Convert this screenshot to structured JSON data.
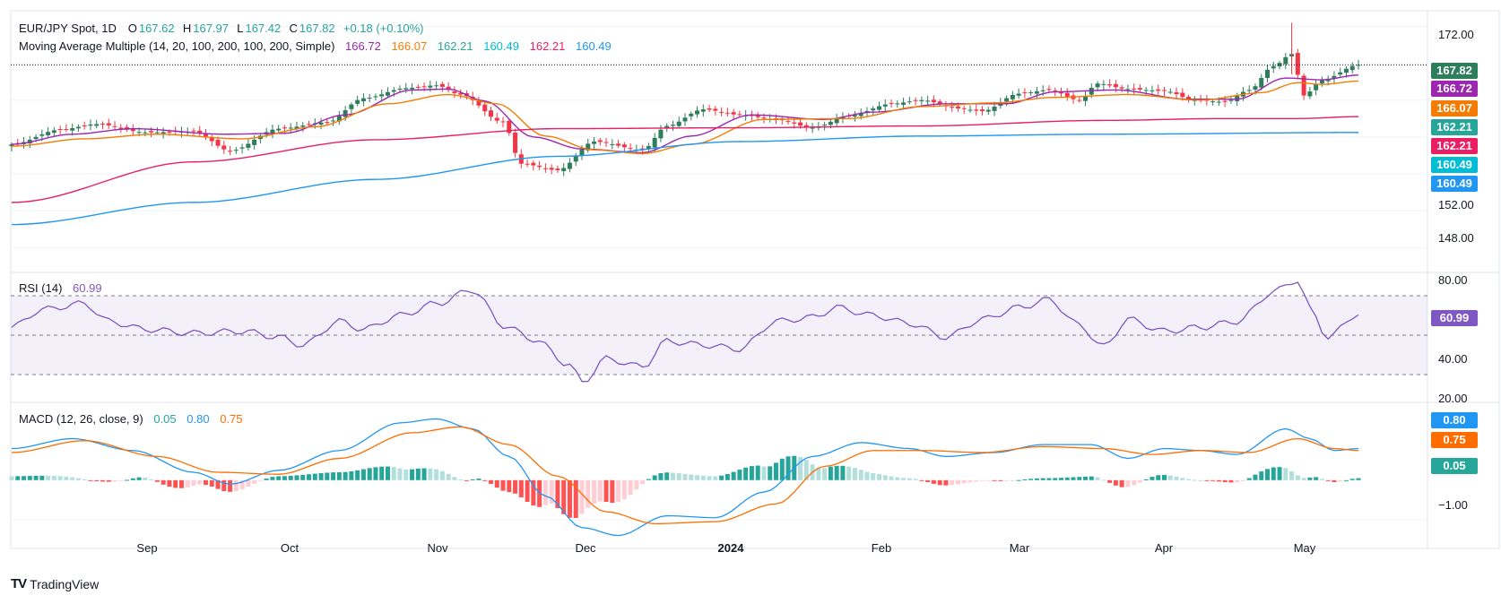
{
  "header": {
    "symbol": "EUR/JPY Spot, 1D",
    "o_label": "O",
    "o": "167.62",
    "h_label": "H",
    "h": "167.97",
    "l_label": "L",
    "l": "167.42",
    "c_label": "C",
    "c": "167.82",
    "change": "+0.18 (+0.10%)"
  },
  "ma_legend": {
    "label": "Moving Average Multiple (14, 20, 100, 200, 100, 200, Simple)",
    "values": [
      "166.72",
      "166.07",
      "162.21",
      "160.49",
      "162.21",
      "160.49"
    ]
  },
  "rsi_legend": {
    "label": "RSI (14)",
    "value": "60.99"
  },
  "macd_legend": {
    "label": "MACD (12, 26, close, 9)",
    "values": [
      "0.05",
      "0.80",
      "0.75"
    ]
  },
  "price_badges": [
    "167.82",
    "166.72",
    "166.07",
    "162.21",
    "162.21",
    "160.49",
    "160.49"
  ],
  "rsi_badge": "60.99",
  "macd_badges": [
    "0.80",
    "0.75",
    "0.05"
  ],
  "price_axis_ticks": [
    "172.00",
    "152.00",
    "148.00"
  ],
  "rsi_axis_ticks": [
    "80.00",
    "40.00",
    "20.00"
  ],
  "macd_axis_ticks": [
    "−1.00"
  ],
  "x_axis_ticks": [
    "Sep",
    "Oct",
    "Nov",
    "Dec",
    "2024",
    "Feb",
    "Mar",
    "Apr",
    "May"
  ],
  "brand": "TradingView",
  "colors": {
    "up": "#26a69a",
    "down": "#f23645",
    "ma14": "#9c27b0",
    "ma20": "#f57c00",
    "ma100": "#e91e63",
    "ma200": "#2196f3",
    "rsi": "#7e57c2",
    "macd": "#2196f3",
    "signal": "#ff6d00",
    "last_price": "#26a69a"
  },
  "chart_data": [
    {
      "type": "candlestick",
      "title": "EUR/JPY Spot, 1D",
      "ylim": [
        145.5,
        173.5
      ],
      "x_ticks": [
        "Sep",
        "Oct",
        "Nov",
        "Dec",
        "2024",
        "Feb",
        "Mar",
        "Apr",
        "May"
      ],
      "close_anchors": [
        [
          0,
          159.2
        ],
        [
          8,
          160.8
        ],
        [
          14,
          161.4
        ],
        [
          22,
          160.5
        ],
        [
          30,
          160.6
        ],
        [
          36,
          158.5
        ],
        [
          44,
          160.9
        ],
        [
          52,
          161.6
        ],
        [
          58,
          164.2
        ],
        [
          65,
          165.3
        ],
        [
          70,
          165.6
        ],
        [
          74,
          164.6
        ],
        [
          81,
          161.6
        ],
        [
          84,
          157.1
        ],
        [
          90,
          156.4
        ],
        [
          96,
          159.5
        ],
        [
          104,
          158.6
        ],
        [
          108,
          161.2
        ],
        [
          114,
          163.0
        ],
        [
          120,
          162.4
        ],
        [
          126,
          161.9
        ],
        [
          132,
          161.0
        ],
        [
          138,
          162.3
        ],
        [
          145,
          163.6
        ],
        [
          150,
          164.0
        ],
        [
          156,
          163.1
        ],
        [
          160,
          162.8
        ],
        [
          166,
          164.7
        ],
        [
          171,
          165.1
        ],
        [
          176,
          164.0
        ],
        [
          179,
          165.8
        ],
        [
          184,
          165.2
        ],
        [
          190,
          165.0
        ],
        [
          195,
          164.0
        ],
        [
          200,
          163.8
        ],
        [
          204,
          165.1
        ],
        [
          208,
          167.7
        ],
        [
          211,
          169.0
        ],
        [
          213,
          164.5
        ],
        [
          216,
          166.2
        ],
        [
          222,
          167.82
        ]
      ],
      "series_lines": [
        {
          "name": "MA 14",
          "anchors": [
            [
              0,
              159.2
            ],
            [
              10,
              160.3
            ],
            [
              20,
              160.9
            ],
            [
              35,
              160.3
            ],
            [
              45,
              160.4
            ],
            [
              55,
              162.4
            ],
            [
              66,
              165.1
            ],
            [
              72,
              165.2
            ],
            [
              78,
              163.9
            ],
            [
              86,
              160.0
            ],
            [
              94,
              158.7
            ],
            [
              104,
              158.3
            ],
            [
              112,
              160.1
            ],
            [
              122,
              162.4
            ],
            [
              134,
              161.9
            ],
            [
              142,
              162.7
            ],
            [
              154,
              163.6
            ],
            [
              164,
              163.6
            ],
            [
              172,
              164.9
            ],
            [
              182,
              165.1
            ],
            [
              194,
              164.1
            ],
            [
              202,
              164.1
            ],
            [
              210,
              166.4
            ],
            [
              216,
              166.2
            ],
            [
              222,
              166.72
            ]
          ]
        },
        {
          "name": "MA 20",
          "anchors": [
            [
              0,
              159.0
            ],
            [
              12,
              159.8
            ],
            [
              24,
              160.3
            ],
            [
              38,
              159.8
            ],
            [
              50,
              161.1
            ],
            [
              62,
              163.6
            ],
            [
              72,
              164.6
            ],
            [
              80,
              163.6
            ],
            [
              88,
              160.1
            ],
            [
              96,
              158.6
            ],
            [
              104,
              158.2
            ],
            [
              112,
              159.2
            ],
            [
              124,
              161.9
            ],
            [
              138,
              162.0
            ],
            [
              150,
              163.3
            ],
            [
              162,
              163.7
            ],
            [
              172,
              164.3
            ],
            [
              184,
              164.6
            ],
            [
              196,
              164.0
            ],
            [
              206,
              164.8
            ],
            [
              212,
              165.9
            ],
            [
              216,
              165.7
            ],
            [
              222,
              166.07
            ]
          ]
        },
        {
          "name": "MA 100",
          "anchors": [
            [
              0,
              152.9
            ],
            [
              30,
              157.3
            ],
            [
              60,
              159.7
            ],
            [
              90,
              160.9
            ],
            [
              120,
              161.0
            ],
            [
              150,
              161.2
            ],
            [
              180,
              161.8
            ],
            [
              200,
              162.0
            ],
            [
              212,
              162.0
            ],
            [
              222,
              162.21
            ]
          ]
        },
        {
          "name": "MA 200",
          "anchors": [
            [
              0,
              150.5
            ],
            [
              30,
              152.9
            ],
            [
              60,
              155.4
            ],
            [
              90,
              157.9
            ],
            [
              120,
              159.5
            ],
            [
              150,
              160.1
            ],
            [
              180,
              160.3
            ],
            [
              222,
              160.49
            ]
          ]
        }
      ]
    },
    {
      "type": "line",
      "title": "RSI (14)",
      "ylim": [
        20,
        80
      ],
      "bands": [
        30,
        50,
        70
      ],
      "series": [
        {
          "name": "RSI (14)",
          "anchors": [
            [
              0,
              54
            ],
            [
              5,
              63
            ],
            [
              12,
              66
            ],
            [
              16,
              57
            ],
            [
              22,
              53
            ],
            [
              30,
              51
            ],
            [
              38,
              52
            ],
            [
              44,
              49
            ],
            [
              48,
              45
            ],
            [
              54,
              57
            ],
            [
              58,
              53
            ],
            [
              64,
              60
            ],
            [
              70,
              66
            ],
            [
              76,
              73
            ],
            [
              81,
              55
            ],
            [
              86,
              48
            ],
            [
              92,
              35
            ],
            [
              94,
              26
            ],
            [
              98,
              38
            ],
            [
              104,
              34
            ],
            [
              108,
              47
            ],
            [
              114,
              45
            ],
            [
              120,
              43
            ],
            [
              126,
              57
            ],
            [
              132,
              59
            ],
            [
              136,
              64
            ],
            [
              142,
              60
            ],
            [
              148,
              56
            ],
            [
              154,
              49
            ],
            [
              160,
              58
            ],
            [
              166,
              64
            ],
            [
              171,
              68
            ],
            [
              176,
              55
            ],
            [
              180,
              44
            ],
            [
              184,
              58
            ],
            [
              190,
              52
            ],
            [
              196,
              54
            ],
            [
              202,
              57
            ],
            [
              208,
              72
            ],
            [
              212,
              78
            ],
            [
              214,
              63
            ],
            [
              217,
              49
            ],
            [
              222,
              60.99
            ]
          ]
        }
      ]
    },
    {
      "type": "line",
      "title": "MACD (12, 26, close, 9)",
      "ylim": [
        -1.5,
        1.9
      ],
      "series": [
        {
          "name": "MACD",
          "anchors": [
            [
              0,
              0.8
            ],
            [
              10,
              1.05
            ],
            [
              20,
              0.75
            ],
            [
              30,
              0.2
            ],
            [
              36,
              -0.1
            ],
            [
              44,
              0.25
            ],
            [
              54,
              0.75
            ],
            [
              64,
              1.45
            ],
            [
              70,
              1.55
            ],
            [
              76,
              1.3
            ],
            [
              82,
              0.6
            ],
            [
              88,
              -0.4
            ],
            [
              94,
              -1.2
            ],
            [
              100,
              -1.4
            ],
            [
              108,
              -0.9
            ],
            [
              116,
              -0.95
            ],
            [
              124,
              -0.3
            ],
            [
              132,
              0.6
            ],
            [
              140,
              0.95
            ],
            [
              148,
              0.8
            ],
            [
              154,
              0.6
            ],
            [
              162,
              0.7
            ],
            [
              170,
              0.9
            ],
            [
              178,
              0.9
            ],
            [
              184,
              0.55
            ],
            [
              190,
              0.8
            ],
            [
              196,
              0.75
            ],
            [
              202,
              0.65
            ],
            [
              210,
              1.3
            ],
            [
              214,
              1.05
            ],
            [
              218,
              0.75
            ],
            [
              222,
              0.8
            ]
          ]
        },
        {
          "name": "Signal",
          "anchors": [
            [
              0,
              0.7
            ],
            [
              12,
              1.0
            ],
            [
              24,
              0.6
            ],
            [
              34,
              0.2
            ],
            [
              44,
              0.15
            ],
            [
              54,
              0.55
            ],
            [
              66,
              1.2
            ],
            [
              74,
              1.35
            ],
            [
              82,
              0.9
            ],
            [
              90,
              0.1
            ],
            [
              98,
              -0.8
            ],
            [
              106,
              -1.1
            ],
            [
              116,
              -1.05
            ],
            [
              126,
              -0.6
            ],
            [
              134,
              0.35
            ],
            [
              142,
              0.75
            ],
            [
              150,
              0.75
            ],
            [
              160,
              0.7
            ],
            [
              170,
              0.85
            ],
            [
              180,
              0.8
            ],
            [
              188,
              0.65
            ],
            [
              196,
              0.75
            ],
            [
              204,
              0.7
            ],
            [
              212,
              1.05
            ],
            [
              218,
              0.8
            ],
            [
              222,
              0.75
            ]
          ]
        }
      ]
    }
  ]
}
